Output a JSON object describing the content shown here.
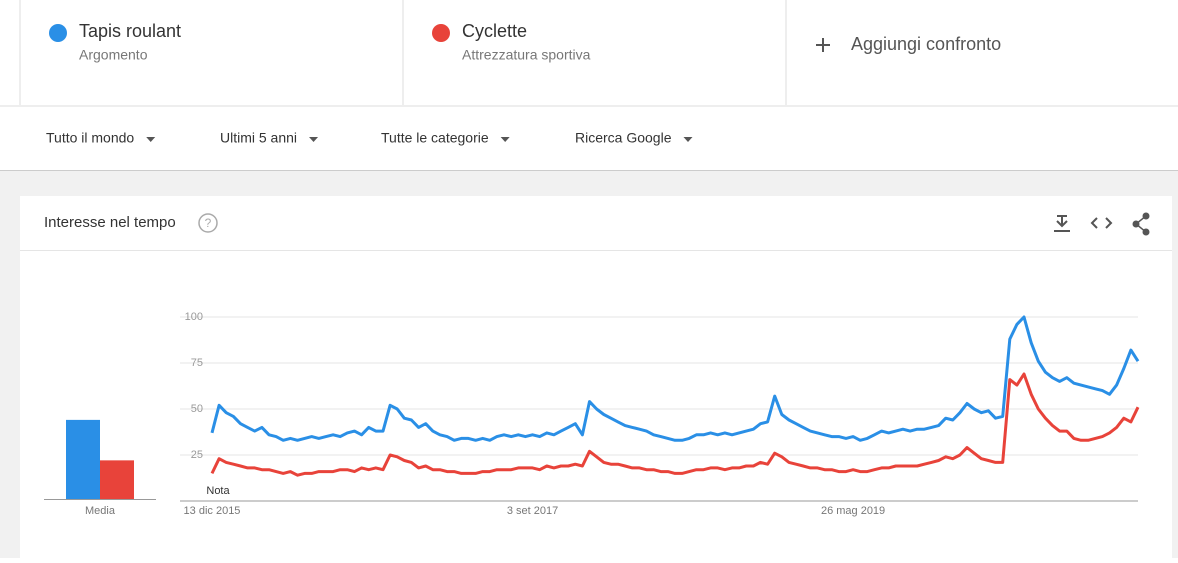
{
  "add_compare": "Aggiungi confronto",
  "filters": [
    "Tutto il mondo",
    "Ultimi 5 anni",
    "Tutte le categorie",
    "Ricerca Google"
  ],
  "card_title": "Interesse nel tempo",
  "chart_data": {
    "type": "line",
    "categories": [
      "13 dic 2015",
      null,
      null,
      null,
      null,
      null,
      null,
      null,
      null,
      null,
      null,
      null,
      null,
      null,
      null,
      null,
      null,
      null,
      null,
      null,
      null,
      null,
      null,
      null,
      null,
      null,
      null,
      null,
      null,
      null,
      null,
      null,
      null,
      null,
      null,
      null,
      null,
      null,
      null,
      null,
      null,
      null,
      null,
      null,
      null,
      "3 set 2017",
      null,
      null,
      null,
      null,
      null,
      null,
      null,
      null,
      null,
      null,
      null,
      null,
      null,
      null,
      null,
      null,
      null,
      null,
      null,
      null,
      null,
      null,
      null,
      null,
      null,
      null,
      null,
      null,
      null,
      null,
      null,
      null,
      null,
      null,
      null,
      null,
      null,
      null,
      null,
      null,
      null,
      null,
      null,
      null,
      "26 mag 2019",
      null,
      null,
      null,
      null,
      null,
      null,
      null,
      null,
      null,
      null,
      null,
      null,
      null,
      null,
      null,
      null,
      null,
      null,
      null,
      null,
      null,
      null,
      null,
      null,
      null,
      null,
      null,
      null,
      null,
      null,
      null,
      null,
      null,
      null,
      null,
      null,
      null,
      null,
      null,
      null
    ],
    "series": [
      {
        "name": "Tapis roulant",
        "subtitle": "Argomento",
        "color": "#2a8fe6",
        "values": [
          37,
          52,
          48,
          46,
          42,
          40,
          38,
          40,
          36,
          35,
          33,
          34,
          33,
          34,
          35,
          34,
          35,
          36,
          35,
          37,
          38,
          36,
          40,
          38,
          38,
          52,
          50,
          45,
          44,
          40,
          42,
          38,
          36,
          35,
          33,
          34,
          34,
          33,
          34,
          33,
          35,
          36,
          35,
          36,
          35,
          36,
          35,
          37,
          36,
          38,
          40,
          42,
          36,
          54,
          50,
          47,
          45,
          43,
          41,
          40,
          39,
          38,
          36,
          35,
          34,
          33,
          33,
          34,
          36,
          36,
          37,
          36,
          37,
          36,
          37,
          38,
          39,
          42,
          43,
          57,
          47,
          44,
          42,
          40,
          38,
          37,
          36,
          35,
          35,
          34,
          35,
          33,
          34,
          36,
          38,
          37,
          38,
          39,
          38,
          39,
          39,
          40,
          41,
          45,
          44,
          48,
          53,
          50,
          48,
          49,
          45,
          46,
          88,
          96,
          100,
          86,
          76,
          70,
          67,
          65,
          67,
          64,
          63,
          62,
          61,
          60,
          58,
          63,
          72,
          82,
          76
        ]
      },
      {
        "name": "Cyclette",
        "subtitle": "Attrezzatura sportiva",
        "color": "#e8433a",
        "values": [
          15,
          23,
          21,
          20,
          19,
          18,
          18,
          17,
          17,
          16,
          15,
          16,
          14,
          15,
          15,
          16,
          16,
          16,
          17,
          17,
          16,
          18,
          17,
          18,
          17,
          25,
          24,
          22,
          21,
          18,
          19,
          17,
          17,
          16,
          16,
          15,
          15,
          15,
          16,
          16,
          17,
          17,
          17,
          18,
          18,
          18,
          17,
          19,
          18,
          19,
          19,
          20,
          19,
          27,
          24,
          21,
          20,
          20,
          19,
          18,
          18,
          17,
          17,
          16,
          16,
          15,
          15,
          16,
          17,
          17,
          18,
          18,
          17,
          18,
          18,
          19,
          19,
          21,
          20,
          26,
          24,
          21,
          20,
          19,
          18,
          18,
          17,
          17,
          16,
          16,
          17,
          16,
          16,
          17,
          18,
          18,
          19,
          19,
          19,
          19,
          20,
          21,
          22,
          24,
          23,
          25,
          29,
          26,
          23,
          22,
          21,
          21,
          66,
          63,
          69,
          58,
          50,
          45,
          41,
          38,
          38,
          34,
          33,
          33,
          34,
          35,
          37,
          40,
          45,
          43,
          51
        ]
      }
    ],
    "ylim": [
      0,
      100
    ],
    "yticks": [
      25,
      50,
      75,
      100
    ],
    "grid": true,
    "averages": {
      "label": "Media",
      "values": [
        43,
        21
      ]
    },
    "note": "Nota"
  }
}
